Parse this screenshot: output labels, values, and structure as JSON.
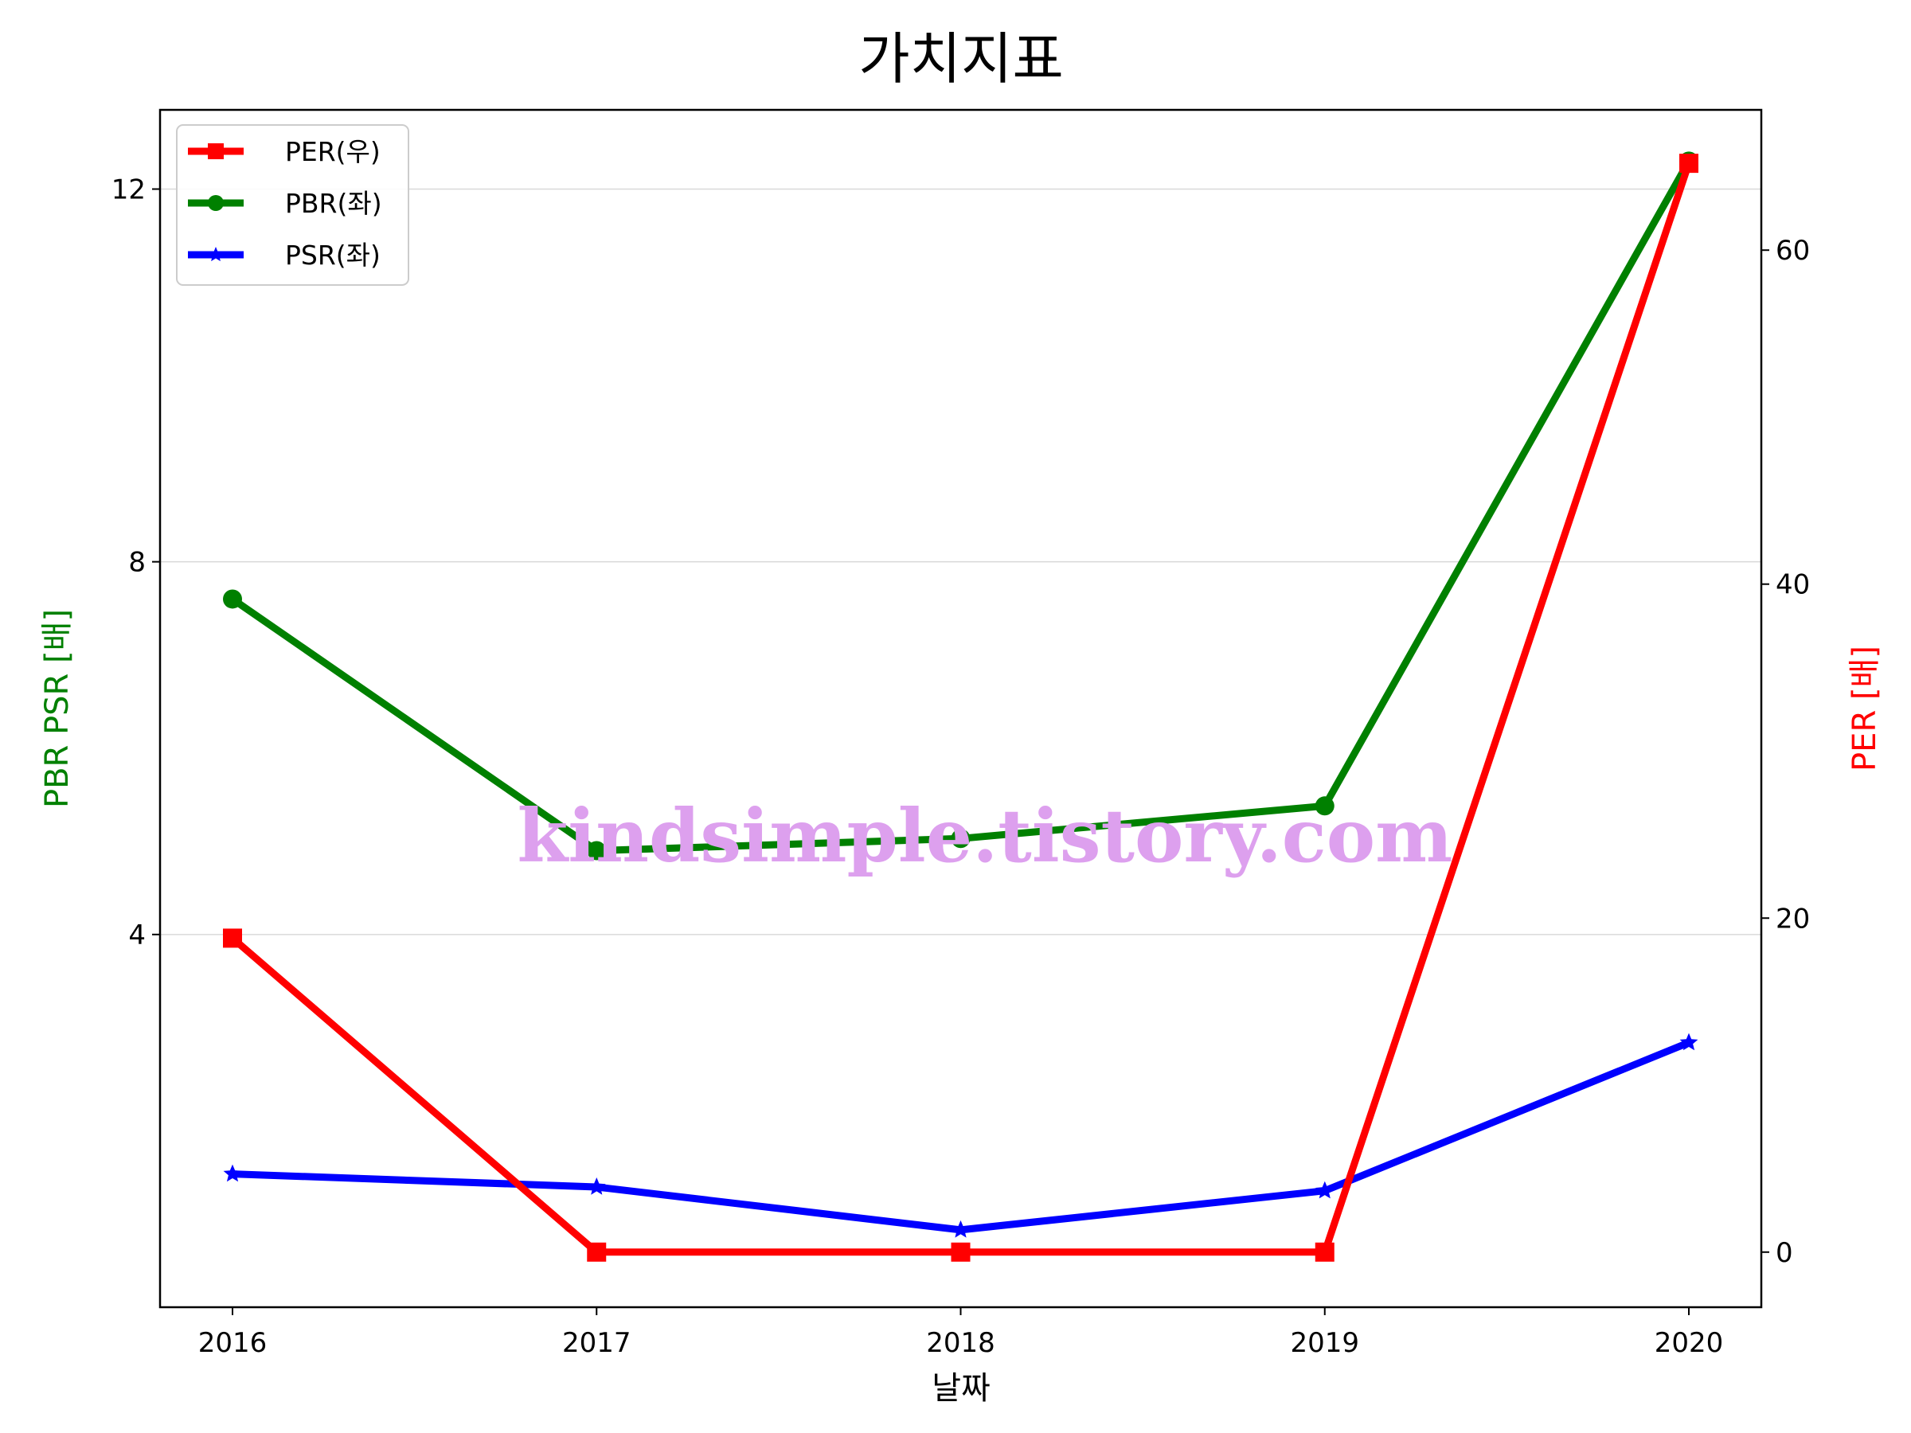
{
  "chart_data": {
    "type": "line",
    "title": "가치지표",
    "xlabel": "날짜",
    "ylabel_left": "PBR PSR [배]",
    "ylabel_right": "PER [배]",
    "ylabel_left_color": "#008000",
    "ylabel_right_color": "#ff0000",
    "categories": [
      "2016",
      "2017",
      "2018",
      "2019",
      "2020"
    ],
    "ylim_left": [
      0.0,
      12.85
    ],
    "ylim_right": [
      -3.3,
      68.4
    ],
    "yticks_left": [
      4,
      8,
      12
    ],
    "yticks_right": [
      0,
      20,
      40,
      60
    ],
    "grid": "horizontal (left axis)",
    "legend_position": "upper-left",
    "series": [
      {
        "name": "PER(우)",
        "axis": "right",
        "color": "#ff0000",
        "marker": "square",
        "values": [
          18.8,
          0,
          0,
          0,
          65.2
        ]
      },
      {
        "name": "PBR(좌)",
        "axis": "left",
        "color": "#008000",
        "marker": "circle",
        "values": [
          7.6,
          4.9,
          5.03,
          5.38,
          12.3
        ]
      },
      {
        "name": "PSR(좌)",
        "axis": "left",
        "color": "#0000ff",
        "marker": "star",
        "values": [
          1.43,
          1.29,
          0.83,
          1.25,
          2.84
        ]
      }
    ]
  },
  "watermark": {
    "text": "kindsimple.tistory.com",
    "color": "#dda0ee"
  }
}
